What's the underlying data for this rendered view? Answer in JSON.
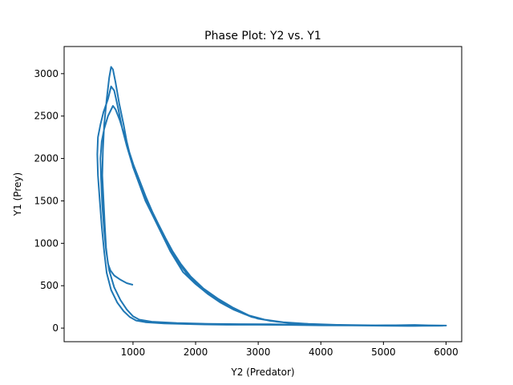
{
  "chart_data": {
    "type": "line",
    "title": "Phase Plot: Y2 vs. Y1",
    "xlabel": "Y2 (Predator)",
    "ylabel": "Y1 (Prey)",
    "xlim": [
      -100,
      6250
    ],
    "ylim": [
      -160,
      3320
    ],
    "xticks": [
      1000,
      2000,
      3000,
      4000,
      5000,
      6000
    ],
    "yticks": [
      0,
      500,
      1000,
      1500,
      2000,
      2500,
      3000
    ],
    "grid": false,
    "series_color": "#1f77b4",
    "series": [
      {
        "points": [
          [
            1000,
            510
          ],
          [
            900,
            530
          ],
          [
            800,
            570
          ],
          [
            700,
            620
          ],
          [
            640,
            680
          ],
          [
            600,
            760
          ],
          [
            570,
            950
          ],
          [
            550,
            1200
          ],
          [
            530,
            1500
          ],
          [
            510,
            1800
          ],
          [
            520,
            2100
          ],
          [
            540,
            2400
          ],
          [
            580,
            2700
          ],
          [
            620,
            2950
          ],
          [
            650,
            3080
          ],
          [
            680,
            3050
          ],
          [
            720,
            2900
          ],
          [
            780,
            2650
          ],
          [
            850,
            2400
          ],
          [
            900,
            2200
          ],
          [
            1000,
            1900
          ],
          [
            1100,
            1700
          ],
          [
            1200,
            1500
          ],
          [
            1300,
            1350
          ],
          [
            1400,
            1200
          ],
          [
            1500,
            1050
          ],
          [
            1600,
            900
          ],
          [
            1700,
            780
          ],
          [
            1800,
            660
          ],
          [
            2000,
            520
          ],
          [
            2200,
            400
          ],
          [
            2400,
            300
          ],
          [
            2600,
            220
          ],
          [
            2800,
            160
          ],
          [
            3000,
            110
          ],
          [
            3300,
            75
          ],
          [
            3600,
            55
          ],
          [
            4000,
            40
          ],
          [
            4500,
            35
          ],
          [
            5000,
            30
          ],
          [
            5500,
            35
          ],
          [
            6000,
            30
          ],
          [
            5500,
            25
          ],
          [
            5000,
            28
          ],
          [
            4500,
            32
          ],
          [
            4000,
            33
          ],
          [
            3500,
            38
          ],
          [
            3000,
            40
          ],
          [
            2500,
            40
          ],
          [
            2000,
            45
          ],
          [
            1500,
            55
          ],
          [
            1200,
            70
          ],
          [
            1050,
            90
          ],
          [
            950,
            130
          ],
          [
            850,
            200
          ],
          [
            750,
            300
          ],
          [
            650,
            450
          ],
          [
            580,
            650
          ],
          [
            540,
            900
          ],
          [
            500,
            1200
          ],
          [
            470,
            1500
          ],
          [
            440,
            1800
          ],
          [
            430,
            2050
          ],
          [
            440,
            2250
          ],
          [
            480,
            2400
          ],
          [
            530,
            2550
          ],
          [
            600,
            2700
          ],
          [
            650,
            2850
          ],
          [
            700,
            2800
          ],
          [
            760,
            2600
          ],
          [
            830,
            2350
          ],
          [
            900,
            2150
          ],
          [
            980,
            1950
          ],
          [
            1080,
            1750
          ],
          [
            1180,
            1560
          ],
          [
            1280,
            1390
          ],
          [
            1380,
            1240
          ],
          [
            1480,
            1090
          ],
          [
            1580,
            940
          ],
          [
            1700,
            800
          ],
          [
            1850,
            650
          ],
          [
            2050,
            500
          ],
          [
            2250,
            380
          ],
          [
            2500,
            270
          ],
          [
            2700,
            190
          ],
          [
            2900,
            130
          ],
          [
            3200,
            85
          ],
          [
            3500,
            60
          ],
          [
            4000,
            42
          ],
          [
            4500,
            36
          ],
          [
            5000,
            32
          ],
          [
            5500,
            38
          ],
          [
            5950,
            28
          ],
          [
            5400,
            26
          ],
          [
            4800,
            30
          ],
          [
            4200,
            34
          ],
          [
            3700,
            40
          ],
          [
            3200,
            45
          ],
          [
            2700,
            47
          ],
          [
            2200,
            50
          ],
          [
            1700,
            60
          ],
          [
            1300,
            75
          ],
          [
            1100,
            100
          ],
          [
            1000,
            140
          ],
          [
            900,
            220
          ],
          [
            800,
            330
          ],
          [
            700,
            480
          ],
          [
            620,
            680
          ],
          [
            570,
            920
          ],
          [
            540,
            1150
          ],
          [
            510,
            1450
          ],
          [
            490,
            1750
          ],
          [
            480,
            2000
          ],
          [
            500,
            2200
          ],
          [
            540,
            2350
          ],
          [
            600,
            2500
          ],
          [
            680,
            2620
          ],
          [
            720,
            2580
          ],
          [
            790,
            2450
          ],
          [
            860,
            2280
          ],
          [
            930,
            2100
          ],
          [
            1010,
            1920
          ],
          [
            1110,
            1730
          ],
          [
            1210,
            1540
          ],
          [
            1310,
            1370
          ],
          [
            1410,
            1220
          ],
          [
            1520,
            1060
          ],
          [
            1630,
            910
          ],
          [
            1760,
            760
          ],
          [
            1920,
            610
          ],
          [
            2120,
            470
          ],
          [
            2350,
            350
          ],
          [
            2600,
            240
          ],
          [
            2850,
            150
          ],
          [
            3100,
            100
          ],
          [
            3400,
            70
          ],
          [
            3800,
            50
          ],
          [
            4300,
            38
          ],
          [
            4800,
            33
          ],
          [
            5300,
            35
          ],
          [
            5800,
            32
          ]
        ]
      }
    ]
  }
}
